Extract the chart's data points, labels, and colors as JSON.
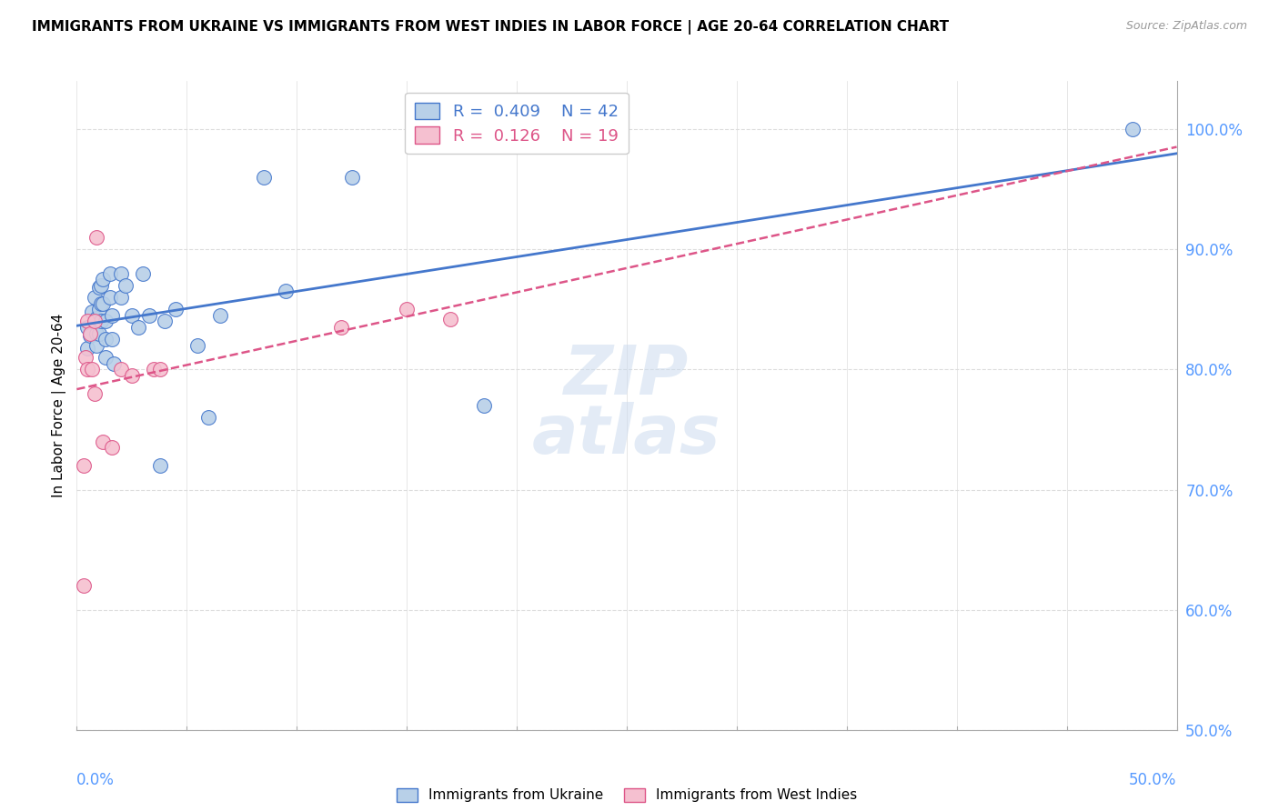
{
  "title": "IMMIGRANTS FROM UKRAINE VS IMMIGRANTS FROM WEST INDIES IN LABOR FORCE | AGE 20-64 CORRELATION CHART",
  "source": "Source: ZipAtlas.com",
  "ylabel": "In Labor Force | Age 20-64",
  "xlim": [
    0.0,
    0.5
  ],
  "ylim": [
    0.5,
    1.04
  ],
  "ukraine_R": "0.409",
  "ukraine_N": "42",
  "westindies_R": "0.126",
  "westindies_N": "19",
  "ukraine_scatter_color": "#b8d0e8",
  "ukraine_line_color": "#4477cc",
  "westindies_scatter_color": "#f5c0d0",
  "westindies_line_color": "#dd5588",
  "tick_color": "#5599ff",
  "grid_color": "#dddddd",
  "ukraine_x": [
    0.005,
    0.005,
    0.006,
    0.007,
    0.008,
    0.009,
    0.009,
    0.009,
    0.01,
    0.01,
    0.01,
    0.011,
    0.011,
    0.011,
    0.012,
    0.012,
    0.013,
    0.013,
    0.013,
    0.015,
    0.015,
    0.016,
    0.016,
    0.017,
    0.02,
    0.02,
    0.022,
    0.025,
    0.028,
    0.03,
    0.033,
    0.038,
    0.04,
    0.045,
    0.055,
    0.06,
    0.065,
    0.085,
    0.095,
    0.125,
    0.185,
    0.48
  ],
  "ukraine_y": [
    0.835,
    0.818,
    0.828,
    0.848,
    0.86,
    0.843,
    0.83,
    0.82,
    0.868,
    0.85,
    0.83,
    0.87,
    0.855,
    0.84,
    0.875,
    0.855,
    0.84,
    0.825,
    0.81,
    0.88,
    0.86,
    0.845,
    0.825,
    0.805,
    0.88,
    0.86,
    0.87,
    0.845,
    0.835,
    0.88,
    0.845,
    0.72,
    0.84,
    0.85,
    0.82,
    0.76,
    0.845,
    0.96,
    0.865,
    0.96,
    0.77,
    1.0
  ],
  "westindies_x": [
    0.003,
    0.003,
    0.004,
    0.005,
    0.005,
    0.006,
    0.007,
    0.008,
    0.008,
    0.009,
    0.012,
    0.016,
    0.02,
    0.025,
    0.035,
    0.038,
    0.12,
    0.15,
    0.17
  ],
  "westindies_y": [
    0.62,
    0.72,
    0.81,
    0.84,
    0.8,
    0.83,
    0.8,
    0.84,
    0.78,
    0.91,
    0.74,
    0.735,
    0.8,
    0.795,
    0.8,
    0.8,
    0.835,
    0.85,
    0.842
  ]
}
